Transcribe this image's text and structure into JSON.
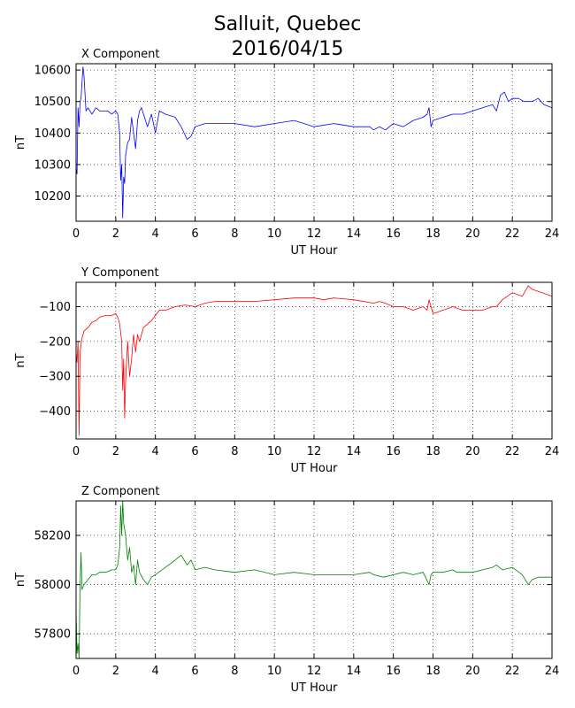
{
  "figure": {
    "title_line1": "Salluit, Quebec",
    "title_line2": "2016/04/15"
  },
  "chart_data": [
    {
      "type": "line",
      "title": "X Component",
      "xlabel": "UT Hour",
      "ylabel": "nT",
      "color": "#0000ff",
      "xlim": [
        0,
        24
      ],
      "ylim": [
        10120,
        10620
      ],
      "xticks": [
        0,
        2,
        4,
        6,
        8,
        10,
        12,
        14,
        16,
        18,
        20,
        22,
        24
      ],
      "yticks": [
        10200,
        10300,
        10400,
        10500,
        10600
      ],
      "grid": true,
      "series": [
        {
          "x": [
            0,
            0.05,
            0.1,
            0.15,
            0.2,
            0.25,
            0.3,
            0.35,
            0.4,
            0.5,
            0.6,
            0.8,
            1.0,
            1.2,
            1.4,
            1.6,
            1.8,
            2.0,
            2.1,
            2.2,
            2.25,
            2.3,
            2.35,
            2.4,
            2.45,
            2.5,
            2.6,
            2.7,
            2.8,
            2.9,
            3.0,
            3.1,
            3.2,
            3.3,
            3.4,
            3.6,
            3.8,
            4.0,
            4.2,
            4.5,
            5.0,
            5.3,
            5.6,
            5.8,
            6.0,
            6.5,
            7.0,
            8.0,
            9.0,
            10.0,
            11.0,
            12.0,
            13.0,
            14.0,
            14.8,
            15.0,
            15.3,
            15.6,
            16.0,
            16.5,
            17.0,
            17.5,
            17.7,
            17.8,
            17.9,
            18.0,
            18.5,
            19.0,
            19.5,
            20.0,
            20.5,
            21.0,
            21.2,
            21.4,
            21.6,
            21.8,
            22.0,
            22.3,
            22.6,
            23.0,
            23.3,
            23.6,
            24.0
          ],
          "y": [
            10290,
            10270,
            10480,
            10420,
            10500,
            10510,
            10560,
            10610,
            10580,
            10470,
            10480,
            10460,
            10480,
            10470,
            10470,
            10470,
            10460,
            10470,
            10460,
            10400,
            10250,
            10300,
            10130,
            10260,
            10240,
            10330,
            10370,
            10380,
            10450,
            10400,
            10350,
            10440,
            10470,
            10480,
            10460,
            10420,
            10460,
            10400,
            10470,
            10460,
            10450,
            10420,
            10380,
            10390,
            10420,
            10430,
            10430,
            10430,
            10420,
            10430,
            10440,
            10420,
            10430,
            10420,
            10420,
            10410,
            10420,
            10410,
            10430,
            10420,
            10440,
            10450,
            10460,
            10480,
            10420,
            10440,
            10450,
            10460,
            10460,
            10470,
            10480,
            10490,
            10470,
            10520,
            10530,
            10500,
            10510,
            10510,
            10500,
            10500,
            10510,
            10490,
            10480
          ]
        }
      ]
    },
    {
      "type": "line",
      "title": "Y Component",
      "xlabel": "UT Hour",
      "ylabel": "nT",
      "color": "#ff0000",
      "xlim": [
        0,
        24
      ],
      "ylim": [
        -480,
        -30
      ],
      "xticks": [
        0,
        2,
        4,
        6,
        8,
        10,
        12,
        14,
        16,
        18,
        20,
        22,
        24
      ],
      "yticks": [
        -100,
        -200,
        -300,
        -400
      ],
      "grid": true,
      "series": [
        {
          "x": [
            0,
            0.05,
            0.1,
            0.15,
            0.2,
            0.3,
            0.4,
            0.6,
            0.8,
            1.0,
            1.2,
            1.5,
            1.8,
            2.0,
            2.1,
            2.2,
            2.3,
            2.35,
            2.4,
            2.45,
            2.5,
            2.6,
            2.7,
            2.8,
            2.9,
            3.0,
            3.1,
            3.2,
            3.4,
            3.6,
            3.8,
            4.0,
            4.2,
            4.5,
            5.0,
            5.5,
            6.0,
            6.5,
            7.0,
            8.0,
            9.0,
            10.0,
            11.0,
            12.0,
            12.5,
            13.0,
            14.0,
            15.0,
            15.3,
            15.6,
            16.0,
            16.5,
            17.0,
            17.5,
            17.7,
            17.8,
            17.9,
            18.0,
            18.5,
            19.0,
            19.5,
            20.0,
            20.5,
            21.0,
            21.2,
            21.5,
            22.0,
            22.5,
            22.8,
            23.0,
            23.5,
            24.0
          ],
          "y": [
            -230,
            -260,
            -200,
            -470,
            -230,
            -190,
            -170,
            -160,
            -145,
            -140,
            -130,
            -125,
            -125,
            -120,
            -130,
            -150,
            -200,
            -340,
            -250,
            -420,
            -310,
            -200,
            -300,
            -250,
            -180,
            -230,
            -180,
            -200,
            -160,
            -150,
            -140,
            -125,
            -110,
            -110,
            -100,
            -95,
            -100,
            -90,
            -85,
            -85,
            -85,
            -80,
            -75,
            -75,
            -80,
            -75,
            -80,
            -90,
            -85,
            -90,
            -100,
            -100,
            -110,
            -100,
            -110,
            -80,
            -100,
            -120,
            -110,
            -100,
            -110,
            -110,
            -110,
            -100,
            -100,
            -80,
            -60,
            -70,
            -40,
            -50,
            -60,
            -70
          ]
        }
      ]
    },
    {
      "type": "line",
      "title": "Z Component",
      "xlabel": "UT Hour",
      "ylabel": "nT",
      "color": "#008000",
      "xlim": [
        0,
        24
      ],
      "ylim": [
        57700,
        58340
      ],
      "xticks": [
        0,
        2,
        4,
        6,
        8,
        10,
        12,
        14,
        16,
        18,
        20,
        22,
        24
      ],
      "yticks": [
        57800,
        58000,
        58200
      ],
      "grid": true,
      "series": [
        {
          "x": [
            0,
            0.05,
            0.1,
            0.15,
            0.2,
            0.25,
            0.3,
            0.4,
            0.6,
            0.8,
            1.0,
            1.2,
            1.5,
            1.8,
            2.0,
            2.1,
            2.2,
            2.25,
            2.3,
            2.35,
            2.4,
            2.5,
            2.6,
            2.7,
            2.8,
            2.9,
            3.0,
            3.1,
            3.2,
            3.4,
            3.6,
            3.8,
            4.0,
            4.5,
            5.0,
            5.3,
            5.6,
            5.8,
            6.0,
            6.5,
            7.0,
            8.0,
            9.0,
            10.0,
            11.0,
            12.0,
            13.0,
            14.0,
            14.8,
            15.0,
            15.5,
            16.0,
            16.5,
            17.0,
            17.5,
            17.8,
            17.9,
            18.0,
            18.5,
            19.0,
            19.2,
            19.5,
            20.0,
            20.5,
            21.0,
            21.2,
            21.5,
            22.0,
            22.5,
            22.8,
            23.0,
            23.3,
            23.6,
            24.0
          ],
          "y": [
            57900,
            57720,
            57760,
            57700,
            58000,
            58130,
            57980,
            58000,
            58020,
            58040,
            58040,
            58050,
            58050,
            58060,
            58060,
            58080,
            58150,
            58320,
            58200,
            58340,
            58250,
            58200,
            58100,
            58150,
            58050,
            58080,
            58000,
            58100,
            58050,
            58020,
            58000,
            58030,
            58040,
            58070,
            58100,
            58120,
            58080,
            58100,
            58060,
            58070,
            58060,
            58050,
            58060,
            58040,
            58050,
            58040,
            58040,
            58040,
            58050,
            58040,
            58030,
            58040,
            58050,
            58040,
            58050,
            58000,
            58040,
            58050,
            58050,
            58060,
            58050,
            58050,
            58050,
            58060,
            58070,
            58080,
            58060,
            58070,
            58040,
            58000,
            58020,
            58030,
            58030,
            58030
          ]
        }
      ]
    }
  ]
}
